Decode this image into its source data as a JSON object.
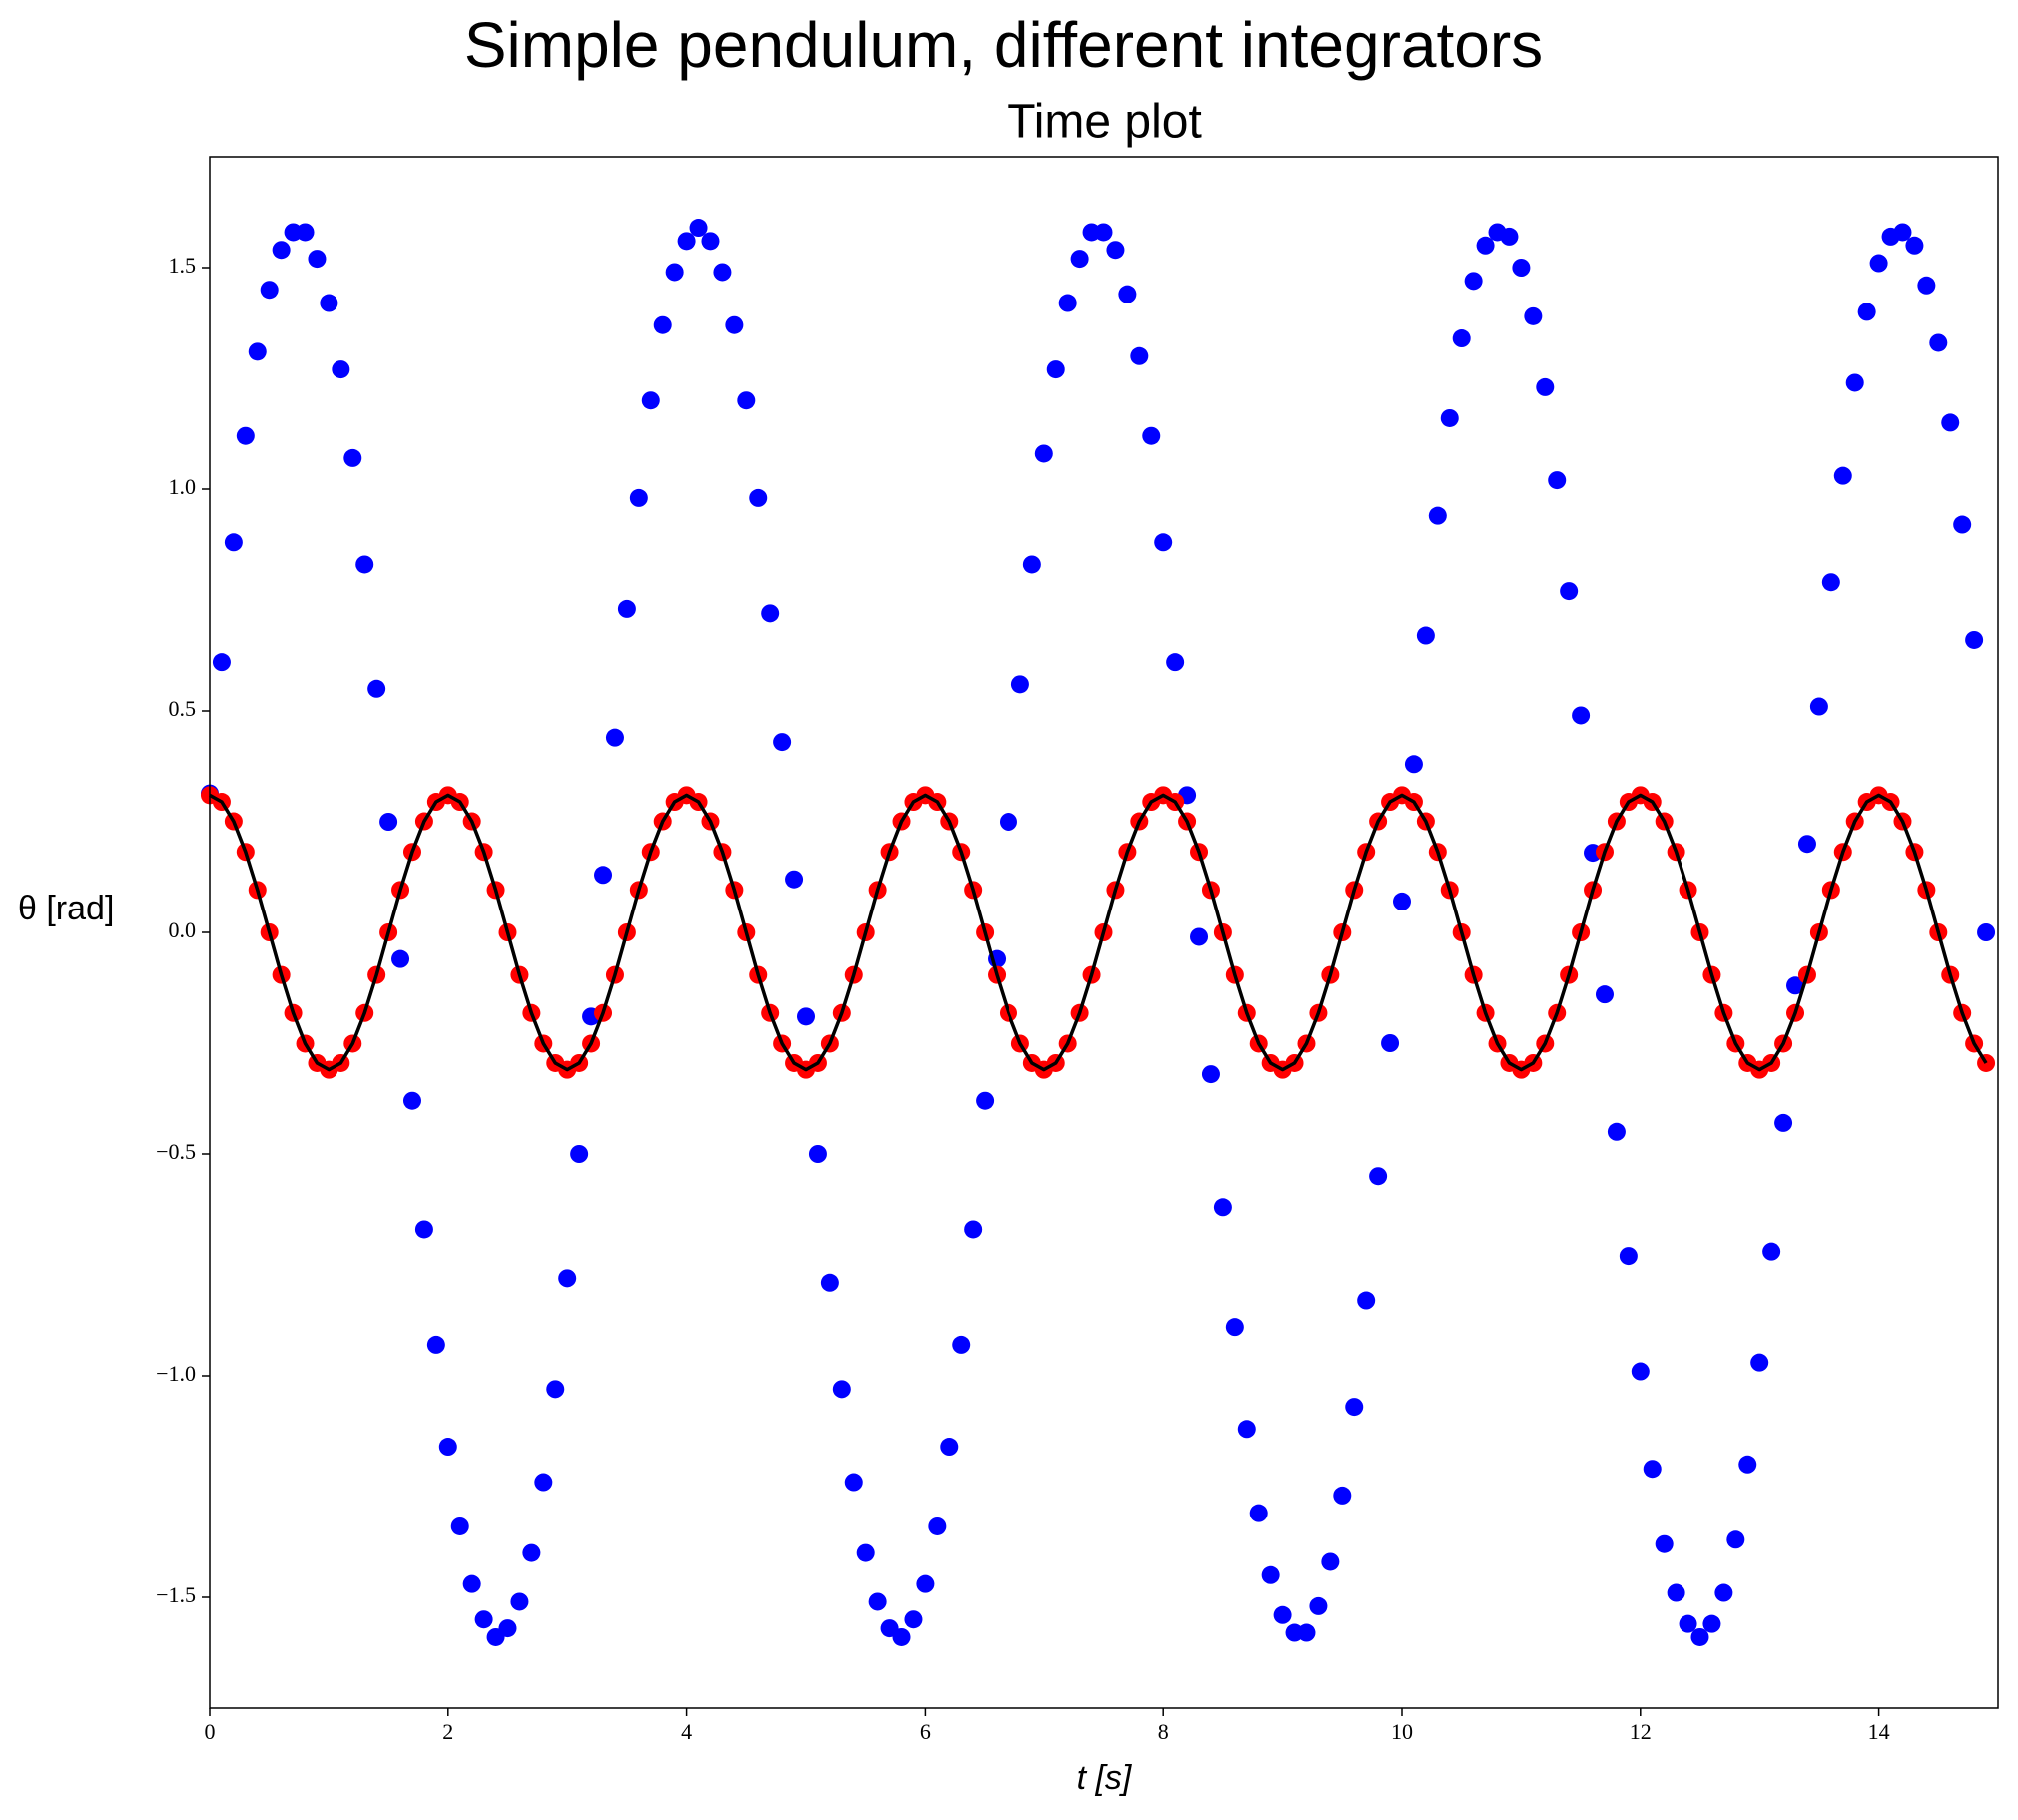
{
  "chart_data": {
    "type": "line",
    "title": "Simple pendulum, different integrators",
    "subtitle": "Time plot",
    "x_label": "t [s]",
    "y_label": "θ [rad]",
    "xlim": [
      0,
      15
    ],
    "ylim": [
      -1.75,
      1.75
    ],
    "xticks": [
      0,
      2,
      4,
      6,
      8,
      10,
      12,
      14
    ],
    "yticks": [
      {
        "value": -1.5,
        "label": "−1.5"
      },
      {
        "value": -1.0,
        "label": "−1.0"
      },
      {
        "value": -0.5,
        "label": "−0.5"
      },
      {
        "value": 0,
        "label": "0.0"
      },
      0.5,
      {
        "value": 1.0,
        "label": "1.0"
      },
      1.5
    ],
    "x": [
      0,
      0.1,
      0.2,
      0.3,
      0.4,
      0.5,
      0.6,
      0.7,
      0.8,
      0.9,
      1,
      1.1,
      1.2,
      1.3,
      1.4,
      1.5,
      1.6,
      1.7,
      1.8,
      1.9,
      2,
      2.1,
      2.2,
      2.3,
      2.4,
      2.5,
      2.6,
      2.7,
      2.8,
      2.9,
      3,
      3.1,
      3.2,
      3.3,
      3.4,
      3.5,
      3.6,
      3.7,
      3.8,
      3.9,
      4,
      4.1,
      4.2,
      4.3,
      4.4,
      4.5,
      4.6,
      4.7,
      4.8,
      4.9,
      5,
      5.1,
      5.2,
      5.3,
      5.4,
      5.5,
      5.6,
      5.7,
      5.8,
      5.9,
      6,
      6.1,
      6.2,
      6.3,
      6.4,
      6.5,
      6.6,
      6.7,
      6.8,
      6.9,
      7,
      7.1,
      7.2,
      7.3,
      7.4,
      7.5,
      7.6,
      7.7,
      7.8,
      7.9,
      8,
      8.1,
      8.2,
      8.3,
      8.4,
      8.5,
      8.6,
      8.7,
      8.8,
      8.9,
      9,
      9.1,
      9.2,
      9.3,
      9.4,
      9.5,
      9.6,
      9.7,
      9.8,
      9.9,
      10,
      10.1,
      10.2,
      10.3,
      10.4,
      10.5,
      10.6,
      10.7,
      10.8,
      10.9,
      11,
      11.1,
      11.2,
      11.3,
      11.4,
      11.5,
      11.6,
      11.7,
      11.8,
      11.9,
      12,
      12.1,
      12.2,
      12.3,
      12.4,
      12.5,
      12.6,
      12.7,
      12.8,
      12.9,
      13,
      13.1,
      13.2,
      13.3,
      13.4,
      13.5,
      13.6,
      13.7,
      13.8,
      13.9,
      14,
      14.1,
      14.2,
      14.3,
      14.4,
      14.5,
      14.6,
      14.7,
      14.8,
      14.9
    ],
    "series": [
      {
        "color": "#0000ff",
        "mode": "markers",
        "values": [
          0.314,
          0.61,
          0.88,
          1.12,
          1.31,
          1.45,
          1.54,
          1.58,
          1.58,
          1.52,
          1.42,
          1.27,
          1.07,
          0.83,
          0.55,
          0.25,
          -0.06,
          -0.38,
          -0.67,
          -0.93,
          -1.16,
          -1.34,
          -1.47,
          -1.55,
          -1.59,
          -1.57,
          -1.51,
          -1.4,
          -1.24,
          -1.03,
          -0.78,
          -0.5,
          -0.19,
          0.13,
          0.44,
          0.73,
          0.98,
          1.2,
          1.37,
          1.49,
          1.56,
          1.59,
          1.56,
          1.49,
          1.37,
          1.2,
          0.98,
          0.72,
          0.43,
          0.12,
          -0.19,
          -0.5,
          -0.79,
          -1.03,
          -1.24,
          -1.4,
          -1.51,
          -1.57,
          -1.59,
          -1.55,
          -1.47,
          -1.34,
          -1.16,
          -0.93,
          -0.67,
          -0.38,
          -0.06,
          0.25,
          0.56,
          0.83,
          1.08,
          1.27,
          1.42,
          1.52,
          1.58,
          1.58,
          1.54,
          1.44,
          1.3,
          1.12,
          0.88,
          0.61,
          0.31,
          -0.01,
          -0.32,
          -0.62,
          -0.89,
          -1.12,
          -1.31,
          -1.45,
          -1.54,
          -1.58,
          -1.58,
          -1.52,
          -1.42,
          -1.27,
          -1.07,
          -0.83,
          -0.55,
          -0.25,
          0.07,
          0.38,
          0.67,
          0.94,
          1.16,
          1.34,
          1.47,
          1.55,
          1.58,
          1.57,
          1.5,
          1.39,
          1.23,
          1.02,
          0.77,
          0.49,
          0.18,
          -0.14,
          -0.45,
          -0.73,
          -0.99,
          -1.21,
          -1.38,
          -1.49,
          -1.56,
          -1.59,
          -1.56,
          -1.49,
          -1.37,
          -1.2,
          -0.97,
          -0.72,
          -0.43,
          -0.12,
          0.2,
          0.51,
          0.79,
          1.03,
          1.24,
          1.4,
          1.51,
          1.57,
          1.58,
          1.55,
          1.46,
          1.33,
          1.15,
          0.92,
          0.66,
          0.0
        ]
      },
      {
        "color": "#ff0000",
        "mode": "markers",
        "values": [
          0.31,
          0.295,
          0.251,
          0.182,
          0.096,
          0,
          -0.096,
          -0.182,
          -0.251,
          -0.295,
          -0.31,
          -0.295,
          -0.251,
          -0.182,
          -0.096,
          0,
          0.096,
          0.182,
          0.251,
          0.295,
          0.31,
          0.295,
          0.251,
          0.182,
          0.096,
          0,
          -0.096,
          -0.182,
          -0.251,
          -0.295,
          -0.31,
          -0.295,
          -0.251,
          -0.182,
          -0.096,
          0,
          0.096,
          0.182,
          0.251,
          0.295,
          0.31,
          0.295,
          0.251,
          0.182,
          0.096,
          0,
          -0.096,
          -0.182,
          -0.251,
          -0.295,
          -0.31,
          -0.295,
          -0.251,
          -0.182,
          -0.096,
          0,
          0.096,
          0.182,
          0.251,
          0.295,
          0.31,
          0.295,
          0.251,
          0.182,
          0.096,
          0,
          -0.096,
          -0.182,
          -0.251,
          -0.295,
          -0.31,
          -0.295,
          -0.251,
          -0.182,
          -0.096,
          0,
          0.096,
          0.182,
          0.251,
          0.295,
          0.31,
          0.295,
          0.251,
          0.182,
          0.096,
          0,
          -0.096,
          -0.182,
          -0.251,
          -0.295,
          -0.31,
          -0.295,
          -0.251,
          -0.182,
          -0.096,
          0,
          0.096,
          0.182,
          0.251,
          0.295,
          0.31,
          0.295,
          0.251,
          0.182,
          0.096,
          0,
          -0.096,
          -0.182,
          -0.251,
          -0.295,
          -0.31,
          -0.295,
          -0.251,
          -0.182,
          -0.096,
          0,
          0.096,
          0.182,
          0.251,
          0.295,
          0.31,
          0.295,
          0.251,
          0.182,
          0.096,
          0,
          -0.096,
          -0.182,
          -0.251,
          -0.295,
          -0.31,
          -0.295,
          -0.251,
          -0.182,
          -0.096,
          0,
          0.096,
          0.182,
          0.251,
          0.295,
          0.31,
          0.295,
          0.251,
          0.182,
          0.096,
          0,
          -0.096,
          -0.182,
          -0.251,
          -0.295
        ]
      },
      {
        "color": "#000000",
        "mode": "line",
        "values": [
          0.31,
          0.295,
          0.251,
          0.182,
          0.096,
          0,
          -0.096,
          -0.182,
          -0.251,
          -0.295,
          -0.31,
          -0.295,
          -0.251,
          -0.182,
          -0.096,
          0,
          0.096,
          0.182,
          0.251,
          0.295,
          0.31,
          0.295,
          0.251,
          0.182,
          0.096,
          0,
          -0.096,
          -0.182,
          -0.251,
          -0.295,
          -0.31,
          -0.295,
          -0.251,
          -0.182,
          -0.096,
          0,
          0.096,
          0.182,
          0.251,
          0.295,
          0.31,
          0.295,
          0.251,
          0.182,
          0.096,
          0,
          -0.096,
          -0.182,
          -0.251,
          -0.295,
          -0.31,
          -0.295,
          -0.251,
          -0.182,
          -0.096,
          0,
          0.096,
          0.182,
          0.251,
          0.295,
          0.31,
          0.295,
          0.251,
          0.182,
          0.096,
          0,
          -0.096,
          -0.182,
          -0.251,
          -0.295,
          -0.31,
          -0.295,
          -0.251,
          -0.182,
          -0.096,
          0,
          0.096,
          0.182,
          0.251,
          0.295,
          0.31,
          0.295,
          0.251,
          0.182,
          0.096,
          0,
          -0.096,
          -0.182,
          -0.251,
          -0.295,
          -0.31,
          -0.295,
          -0.251,
          -0.182,
          -0.096,
          0,
          0.096,
          0.182,
          0.251,
          0.295,
          0.31,
          0.295,
          0.251,
          0.182,
          0.096,
          0,
          -0.096,
          -0.182,
          -0.251,
          -0.295,
          -0.31,
          -0.295,
          -0.251,
          -0.182,
          -0.096,
          0,
          0.096,
          0.182,
          0.251,
          0.295,
          0.31,
          0.295,
          0.251,
          0.182,
          0.096,
          0,
          -0.096,
          -0.182,
          -0.251,
          -0.295,
          -0.31,
          -0.295,
          -0.251,
          -0.182,
          -0.096,
          0,
          0.096,
          0.182,
          0.251,
          0.295,
          0.31,
          0.295,
          0.251,
          0.182,
          0.096,
          0,
          -0.096,
          -0.182,
          -0.251,
          -0.295
        ]
      }
    ]
  }
}
